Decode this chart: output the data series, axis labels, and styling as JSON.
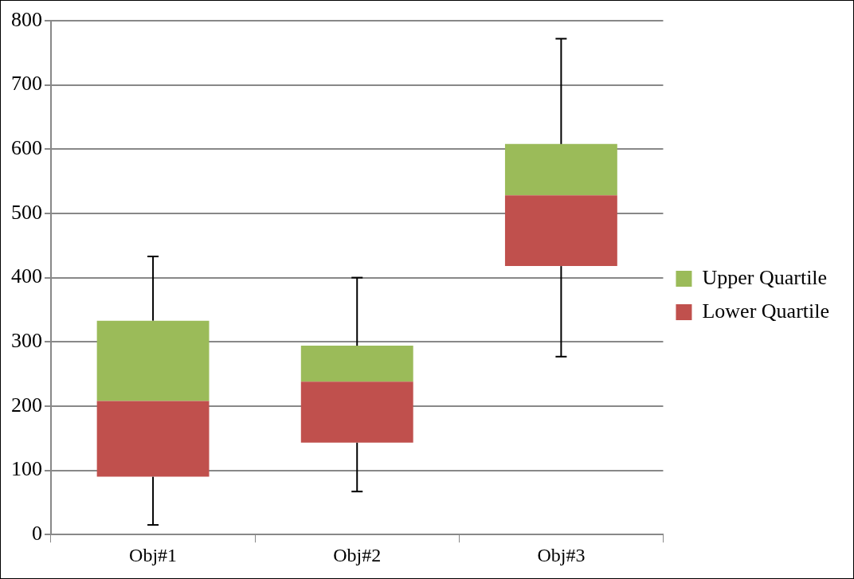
{
  "chart_data": {
    "type": "bar",
    "categories": [
      "Obj#1",
      "Obj#2",
      "Obj#3"
    ],
    "series": [
      {
        "name": "Lower Quartile",
        "color": "#c0504d",
        "base": [
          90,
          143,
          418
        ],
        "values": [
          118,
          95,
          110
        ],
        "errors": [
          [
            15,
            90
          ],
          [
            67,
            143
          ],
          [
            277,
            418
          ]
        ]
      },
      {
        "name": "Upper Quartile",
        "color": "#9bbb59",
        "base": [
          208,
          238,
          528
        ],
        "values": [
          125,
          56,
          80
        ],
        "errors": [
          [
            333,
            433
          ],
          [
            294,
            400
          ],
          [
            608,
            772
          ]
        ]
      }
    ],
    "ylim": [
      0,
      800
    ],
    "yticks": [
      0,
      100,
      200,
      300,
      400,
      500,
      600,
      700,
      800
    ],
    "grid": "y",
    "legend": "right"
  }
}
